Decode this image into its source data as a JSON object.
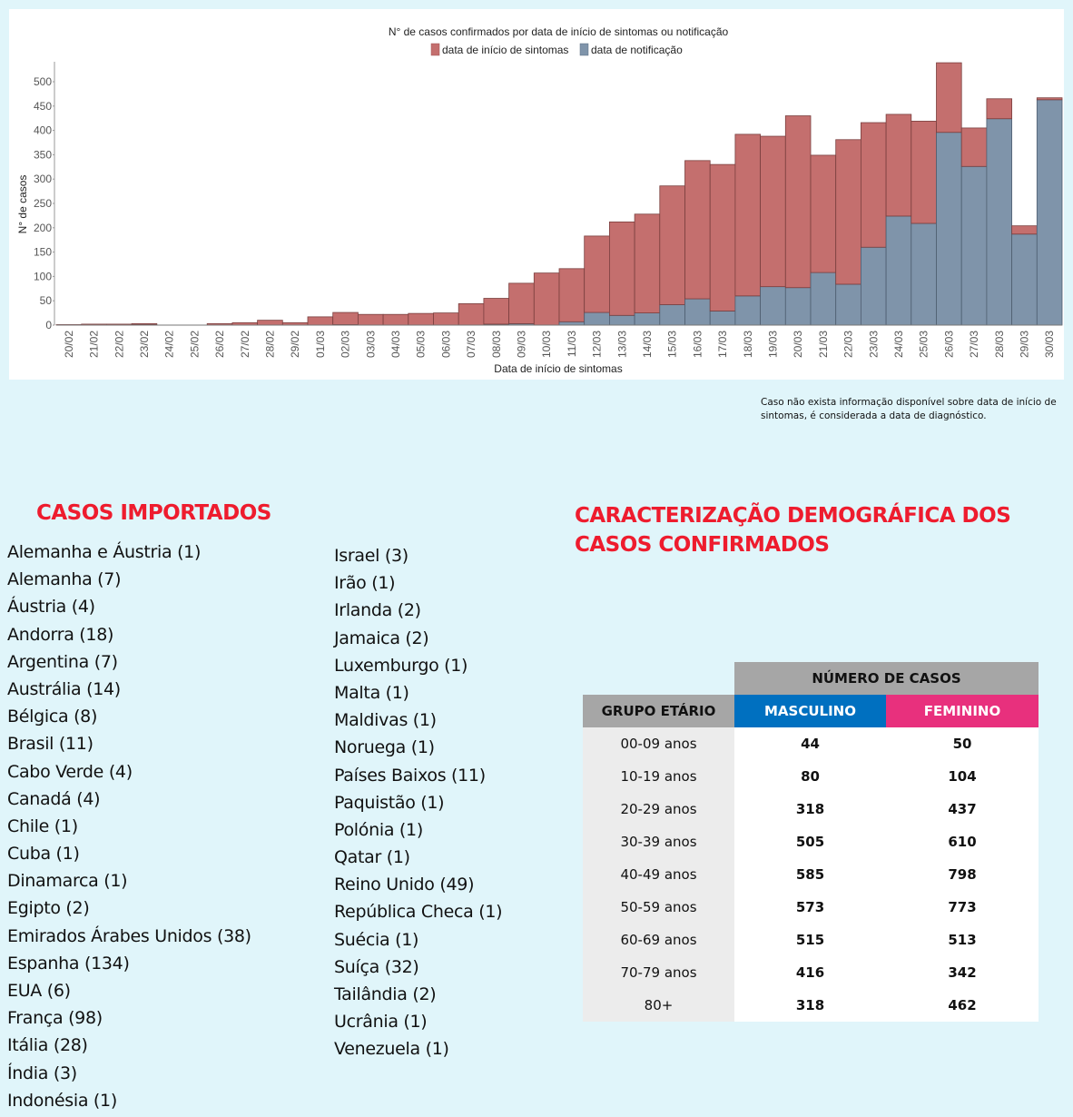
{
  "chart_data": {
    "type": "bar",
    "stacked": true,
    "title": "N° de casos confirmados por data de início de sintomas ou notificação",
    "xlabel": "Data de início de sintomas",
    "ylabel": "N° de casos",
    "ylim": [
      0,
      540
    ],
    "yticks": [
      0,
      50,
      100,
      150,
      200,
      250,
      300,
      350,
      400,
      450,
      500
    ],
    "grid": false,
    "legend_position": "top-center",
    "categories": [
      "20/02",
      "21/02",
      "22/02",
      "23/02",
      "24/02",
      "25/02",
      "26/02",
      "27/02",
      "28/02",
      "29/02",
      "01/03",
      "02/03",
      "03/03",
      "04/03",
      "05/03",
      "06/03",
      "07/03",
      "08/03",
      "09/03",
      "10/03",
      "11/03",
      "12/03",
      "13/03",
      "14/03",
      "15/03",
      "16/03",
      "17/03",
      "18/03",
      "19/03",
      "20/03",
      "21/03",
      "22/03",
      "23/03",
      "24/03",
      "25/03",
      "26/03",
      "27/03",
      "28/03",
      "29/03",
      "30/03"
    ],
    "series": [
      {
        "name": "data de notificação",
        "color": "#7f94aa",
        "values": [
          0,
          0,
          0,
          1,
          0,
          0,
          0,
          0,
          0,
          0,
          0,
          1,
          0,
          0,
          0,
          0,
          0,
          2,
          3,
          0,
          7,
          26,
          20,
          25,
          42,
          54,
          29,
          60,
          79,
          77,
          108,
          84,
          160,
          224,
          209,
          396,
          326,
          424,
          187,
          463
        ]
      },
      {
        "name": "data de início de sintomas",
        "color": "#c46f6e",
        "values": [
          1,
          2,
          2,
          2,
          0,
          0,
          3,
          5,
          10,
          5,
          17,
          25,
          22,
          22,
          24,
          25,
          44,
          53,
          83,
          107,
          109,
          157,
          192,
          203,
          244,
          284,
          301,
          332,
          309,
          353,
          241,
          297,
          256,
          209,
          210,
          143,
          79,
          41,
          17,
          4
        ]
      }
    ],
    "totals": [
      1,
      2,
      2,
      3,
      0,
      0,
      3,
      5,
      10,
      5,
      17,
      26,
      22,
      22,
      24,
      25,
      44,
      55,
      86,
      107,
      116,
      183,
      212,
      228,
      286,
      338,
      330,
      392,
      388,
      430,
      349,
      381,
      416,
      433,
      419,
      539,
      405,
      465,
      204,
      467
    ]
  },
  "legend": {
    "symptoms_label": "data de início de sintomas",
    "notification_label": "data de notificação"
  },
  "footnote": "Caso não exista informação disponível sobre data de início de sintomas, é considerada a data de diagnóstico.",
  "imported": {
    "title": "CASOS IMPORTADOS",
    "column1": [
      "Alemanha e Áustria (1)",
      "Alemanha (7)",
      "Áustria (4)",
      "Andorra (18)",
      "Argentina (7)",
      "Austrália (14)",
      "Bélgica (8)",
      "Brasil (11)",
      "Cabo Verde (4)",
      "Canadá (4)",
      "Chile (1)",
      "Cuba (1)",
      "Dinamarca (1)",
      "Egipto (2)",
      "Emirados Árabes Unidos (38)",
      "Espanha (134)",
      "EUA (6)",
      "França (98)",
      "Itália (28)",
      "Índia (3)",
      "Indonésia (1)"
    ],
    "column2": [
      "Israel (3)",
      "Irão (1)",
      "Irlanda (2)",
      "Jamaica (2)",
      "Luxemburgo (1)",
      "Malta (1)",
      "Maldivas (1)",
      "Noruega (1)",
      "Países Baixos (11)",
      "Paquistão (1)",
      "Polónia (1)",
      "Qatar (1)",
      "Reino Unido (49)",
      "República Checa (1)",
      "Suécia (1)",
      "Suíça (32)",
      "Tailândia (2)",
      "Ucrânia (1)",
      "Venezuela (1)"
    ]
  },
  "demographics": {
    "title": "CARACTERIZAÇÃO DEMOGRÁFICA DOS CASOS CONFIRMADOS",
    "header_cases": "NÚMERO DE CASOS",
    "header_age": "GRUPO ETÁRIO",
    "header_male": "MASCULINO",
    "header_female": "FEMININO",
    "colors": {
      "male": "#0070c0",
      "female": "#e8307d",
      "header": "#a6a6a6"
    },
    "rows": [
      {
        "age": "00-09 anos",
        "male": "44",
        "female": "50"
      },
      {
        "age": "10-19 anos",
        "male": "80",
        "female": "104"
      },
      {
        "age": "20-29 anos",
        "male": "318",
        "female": "437"
      },
      {
        "age": "30-39 anos",
        "male": "505",
        "female": "610"
      },
      {
        "age": "40-49 anos",
        "male": "585",
        "female": "798"
      },
      {
        "age": "50-59 anos",
        "male": "573",
        "female": "773"
      },
      {
        "age": "60-69 anos",
        "male": "515",
        "female": "513"
      },
      {
        "age": "70-79 anos",
        "male": "416",
        "female": "342"
      },
      {
        "age": "80+",
        "male": "318",
        "female": "462"
      }
    ]
  }
}
